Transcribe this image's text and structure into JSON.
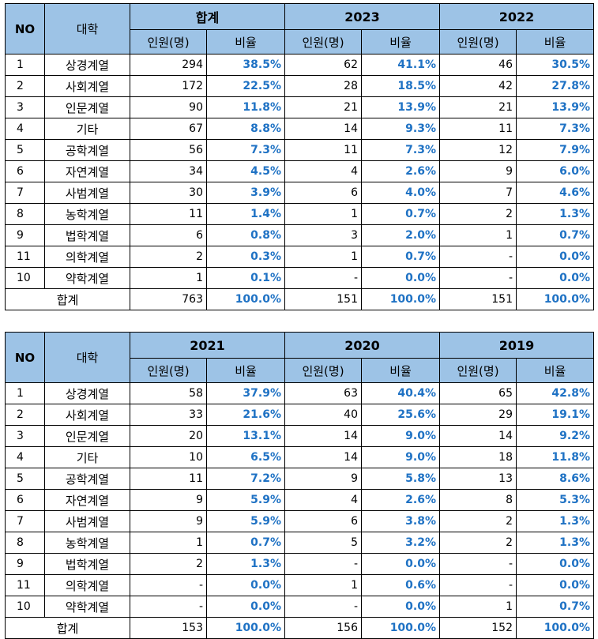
{
  "header": {
    "no": "NO",
    "college": "대학",
    "count": "인원(명)",
    "rate": "비율"
  },
  "tables": [
    {
      "years": [
        "합계",
        "2023",
        "2022"
      ],
      "rows": [
        {
          "no": "1",
          "name": "상경계열",
          "cells": [
            "294",
            "38.5%",
            "62",
            "41.1%",
            "46",
            "30.5%"
          ]
        },
        {
          "no": "2",
          "name": "사회계열",
          "cells": [
            "172",
            "22.5%",
            "28",
            "18.5%",
            "42",
            "27.8%"
          ]
        },
        {
          "no": "3",
          "name": "인문계열",
          "cells": [
            "90",
            "11.8%",
            "21",
            "13.9%",
            "21",
            "13.9%"
          ]
        },
        {
          "no": "4",
          "name": "기타",
          "cells": [
            "67",
            "8.8%",
            "14",
            "9.3%",
            "11",
            "7.3%"
          ]
        },
        {
          "no": "5",
          "name": "공학계열",
          "cells": [
            "56",
            "7.3%",
            "11",
            "7.3%",
            "12",
            "7.9%"
          ]
        },
        {
          "no": "6",
          "name": "자연계열",
          "cells": [
            "34",
            "4.5%",
            "4",
            "2.6%",
            "9",
            "6.0%"
          ]
        },
        {
          "no": "7",
          "name": "사범계열",
          "cells": [
            "30",
            "3.9%",
            "6",
            "4.0%",
            "7",
            "4.6%"
          ]
        },
        {
          "no": "8",
          "name": "농학계열",
          "cells": [
            "11",
            "1.4%",
            "1",
            "0.7%",
            "2",
            "1.3%"
          ]
        },
        {
          "no": "9",
          "name": "법학계열",
          "cells": [
            "6",
            "0.8%",
            "3",
            "2.0%",
            "1",
            "0.7%"
          ]
        },
        {
          "no": "11",
          "name": "의학계열",
          "cells": [
            "2",
            "0.3%",
            "1",
            "0.7%",
            "-",
            "0.0%"
          ]
        },
        {
          "no": "10",
          "name": "약학계열",
          "cells": [
            "1",
            "0.1%",
            "-",
            "0.0%",
            "-",
            "0.0%"
          ]
        }
      ],
      "total": {
        "label": "합계",
        "cells": [
          "763",
          "100.0%",
          "151",
          "100.0%",
          "151",
          "100.0%"
        ]
      }
    },
    {
      "years": [
        "2021",
        "2020",
        "2019"
      ],
      "rows": [
        {
          "no": "1",
          "name": "상경계열",
          "cells": [
            "58",
            "37.9%",
            "63",
            "40.4%",
            "65",
            "42.8%"
          ]
        },
        {
          "no": "2",
          "name": "사회계열",
          "cells": [
            "33",
            "21.6%",
            "40",
            "25.6%",
            "29",
            "19.1%"
          ]
        },
        {
          "no": "3",
          "name": "인문계열",
          "cells": [
            "20",
            "13.1%",
            "14",
            "9.0%",
            "14",
            "9.2%"
          ]
        },
        {
          "no": "4",
          "name": "기타",
          "cells": [
            "10",
            "6.5%",
            "14",
            "9.0%",
            "18",
            "11.8%"
          ]
        },
        {
          "no": "5",
          "name": "공학계열",
          "cells": [
            "11",
            "7.2%",
            "9",
            "5.8%",
            "13",
            "8.6%"
          ]
        },
        {
          "no": "6",
          "name": "자연계열",
          "cells": [
            "9",
            "5.9%",
            "4",
            "2.6%",
            "8",
            "5.3%"
          ]
        },
        {
          "no": "7",
          "name": "사범계열",
          "cells": [
            "9",
            "5.9%",
            "6",
            "3.8%",
            "2",
            "1.3%"
          ]
        },
        {
          "no": "8",
          "name": "농학계열",
          "cells": [
            "1",
            "0.7%",
            "5",
            "3.2%",
            "2",
            "1.3%"
          ]
        },
        {
          "no": "9",
          "name": "법학계열",
          "cells": [
            "2",
            "1.3%",
            "-",
            "0.0%",
            "-",
            "0.0%"
          ]
        },
        {
          "no": "11",
          "name": "의학계열",
          "cells": [
            "-",
            "0.0%",
            "1",
            "0.6%",
            "-",
            "0.0%"
          ]
        },
        {
          "no": "10",
          "name": "약학계열",
          "cells": [
            "-",
            "0.0%",
            "-",
            "0.0%",
            "1",
            "0.7%"
          ]
        }
      ],
      "total": {
        "label": "합계",
        "cells": [
          "153",
          "100.0%",
          "156",
          "100.0%",
          "152",
          "100.0%"
        ]
      }
    }
  ]
}
